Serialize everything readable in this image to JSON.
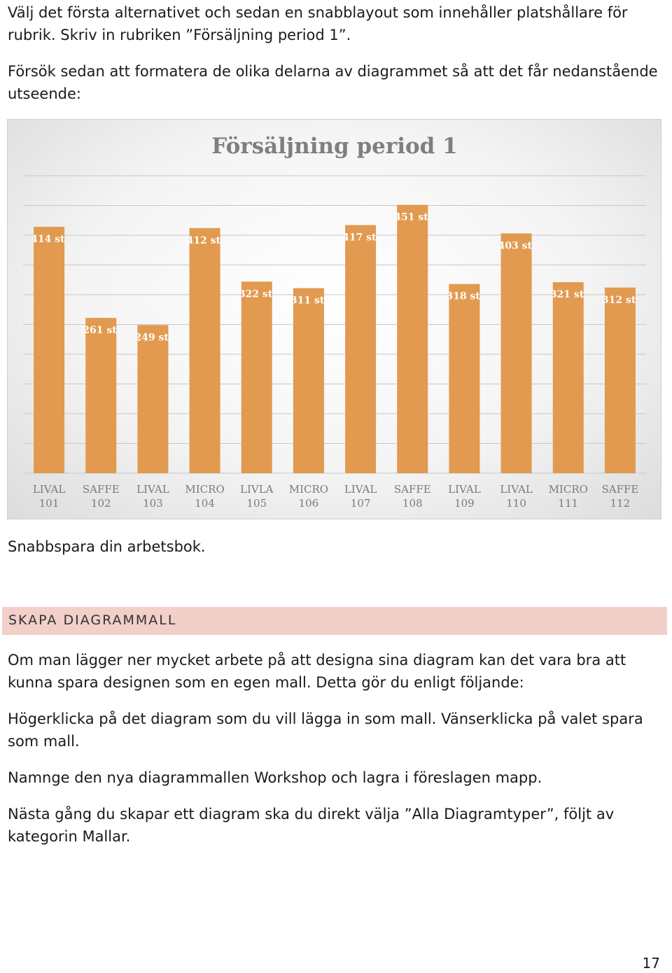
{
  "intro": {
    "p1": "Välj det första alternativet och sedan en snabblayout som innehåller platshållare för rubrik. Skriv in rubriken ”Försäljning period 1”.",
    "p2": "Försök sedan att formatera de olika delarna av diagrammet så att det får nedanstående utseende:"
  },
  "chart_data": {
    "type": "bar",
    "title": "Försäljning period 1",
    "categories": [
      "LIVAL 101",
      "SAFFE 102",
      "LIVAL 103",
      "MICRO 104",
      "LIVLA 105",
      "MICRO 106",
      "LIVAL 107",
      "SAFFE 108",
      "LIVAL 109",
      "LIVAL 110",
      "MICRO 111",
      "SAFFE 112"
    ],
    "category_lines": [
      [
        "LIVAL",
        "101"
      ],
      [
        "SAFFE",
        "102"
      ],
      [
        "LIVAL",
        "103"
      ],
      [
        "MICRO",
        "104"
      ],
      [
        "LIVLA",
        "105"
      ],
      [
        "MICRO",
        "106"
      ],
      [
        "LIVAL",
        "107"
      ],
      [
        "SAFFE",
        "108"
      ],
      [
        "LIVAL",
        "109"
      ],
      [
        "LIVAL",
        "110"
      ],
      [
        "MICRO",
        "111"
      ],
      [
        "SAFFE",
        "112"
      ]
    ],
    "values": [
      414,
      261,
      249,
      412,
      322,
      311,
      417,
      451,
      318,
      403,
      321,
      312
    ],
    "data_labels": [
      "414 st",
      "261 st",
      "249 st",
      "412 st",
      "322 st",
      "311 st",
      "417 st",
      "451 st",
      "318 st",
      "403 st",
      "321 st",
      "312 st"
    ],
    "ylim": [
      0,
      500
    ],
    "y_axis_visible": false,
    "grid": true,
    "legend": false,
    "colors": {
      "bar": "#e19a4f",
      "label": "#ffffff",
      "title": "#7f7f7f",
      "tick": "#7a7a7a"
    }
  },
  "after_chart": "Snabbspara din arbetsbok.",
  "section": {
    "heading": "SKAPA DIAGRAMMALL",
    "band_color": "#f2cfc9",
    "paragraphs": [
      "Om man lägger ner mycket arbete på att designa sina diagram kan det vara bra att kunna spara designen som en egen mall. Detta gör du enligt följande:",
      "Högerklicka på det diagram som du vill lägga in som mall. Vänserklicka på valet spara som mall.",
      "Namnge den nya diagrammallen Workshop och lagra i föreslagen mapp.",
      "Nästa gång du skapar ett diagram ska du direkt välja ”Alla Diagramtyper”, följt av kategorin Mallar."
    ]
  },
  "page_number": "17"
}
